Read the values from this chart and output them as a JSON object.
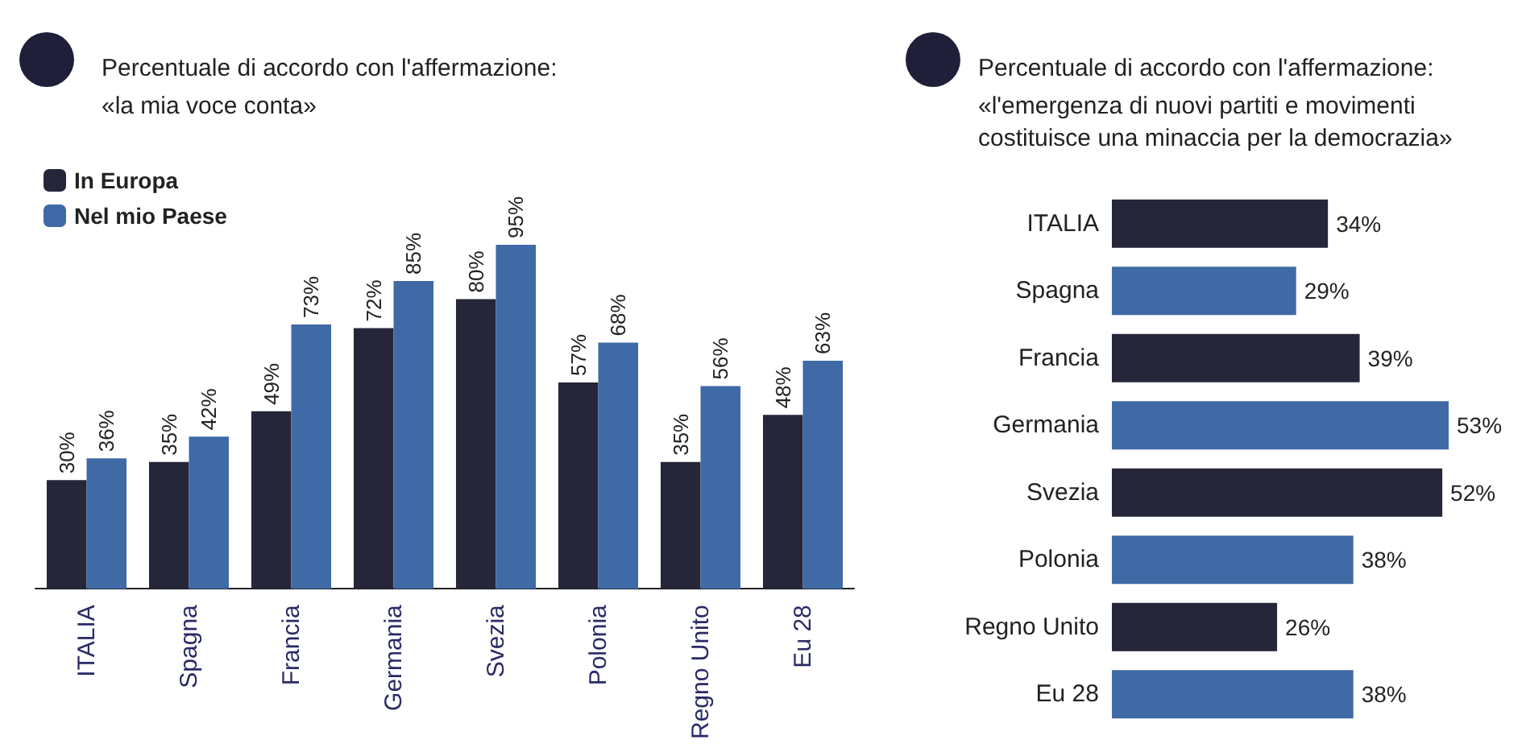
{
  "chart_data": [
    {
      "type": "bar",
      "title": "Percentuale di accordo con l'affermazione:",
      "subtitle": "«la mia voce conta»",
      "categories": [
        "ITALIA",
        "Spagna",
        "Francia",
        "Germania",
        "Svezia",
        "Polonia",
        "Regno Unito",
        "Eu 28"
      ],
      "series": [
        {
          "name": "In Europa",
          "color": "#26263a",
          "values": [
            30,
            35,
            49,
            72,
            80,
            57,
            35,
            48
          ],
          "value_labels": [
            "30%",
            "35%",
            "49%",
            "72%",
            "80%",
            "57%",
            "35%",
            "48%"
          ]
        },
        {
          "name": "Nel mio Paese",
          "color": "#3f6aa6",
          "values": [
            36,
            42,
            73,
            85,
            95,
            68,
            56,
            63
          ],
          "value_labels": [
            "36%",
            "42%",
            "73%",
            "85%",
            "95%",
            "68%",
            "56%",
            "63%"
          ]
        }
      ],
      "legend": "top left",
      "grid": false
    },
    {
      "type": "bar",
      "orientation": "horizontal",
      "title": "Percentuale di accordo con l'affermazione:",
      "subtitle": "«l'emergenza di nuovi partiti e movimenti costituisce una minaccia per la democrazia»",
      "categories": [
        "ITALIA",
        "Spagna",
        "Francia",
        "Germania",
        "Svezia",
        "Polonia",
        "Regno Unito",
        "Eu 28"
      ],
      "values": [
        34,
        29,
        39,
        53,
        52,
        38,
        26,
        38
      ],
      "value_labels": [
        "34%",
        "29%",
        "39%",
        "53%",
        "52%",
        "38%",
        "26%",
        "38%"
      ],
      "colors": [
        "#26263a",
        "#3f6aa6",
        "#26263a",
        "#3f6aa6",
        "#26263a",
        "#3f6aa6",
        "#26263a",
        "#3f6aa6"
      ],
      "grid": false
    }
  ]
}
